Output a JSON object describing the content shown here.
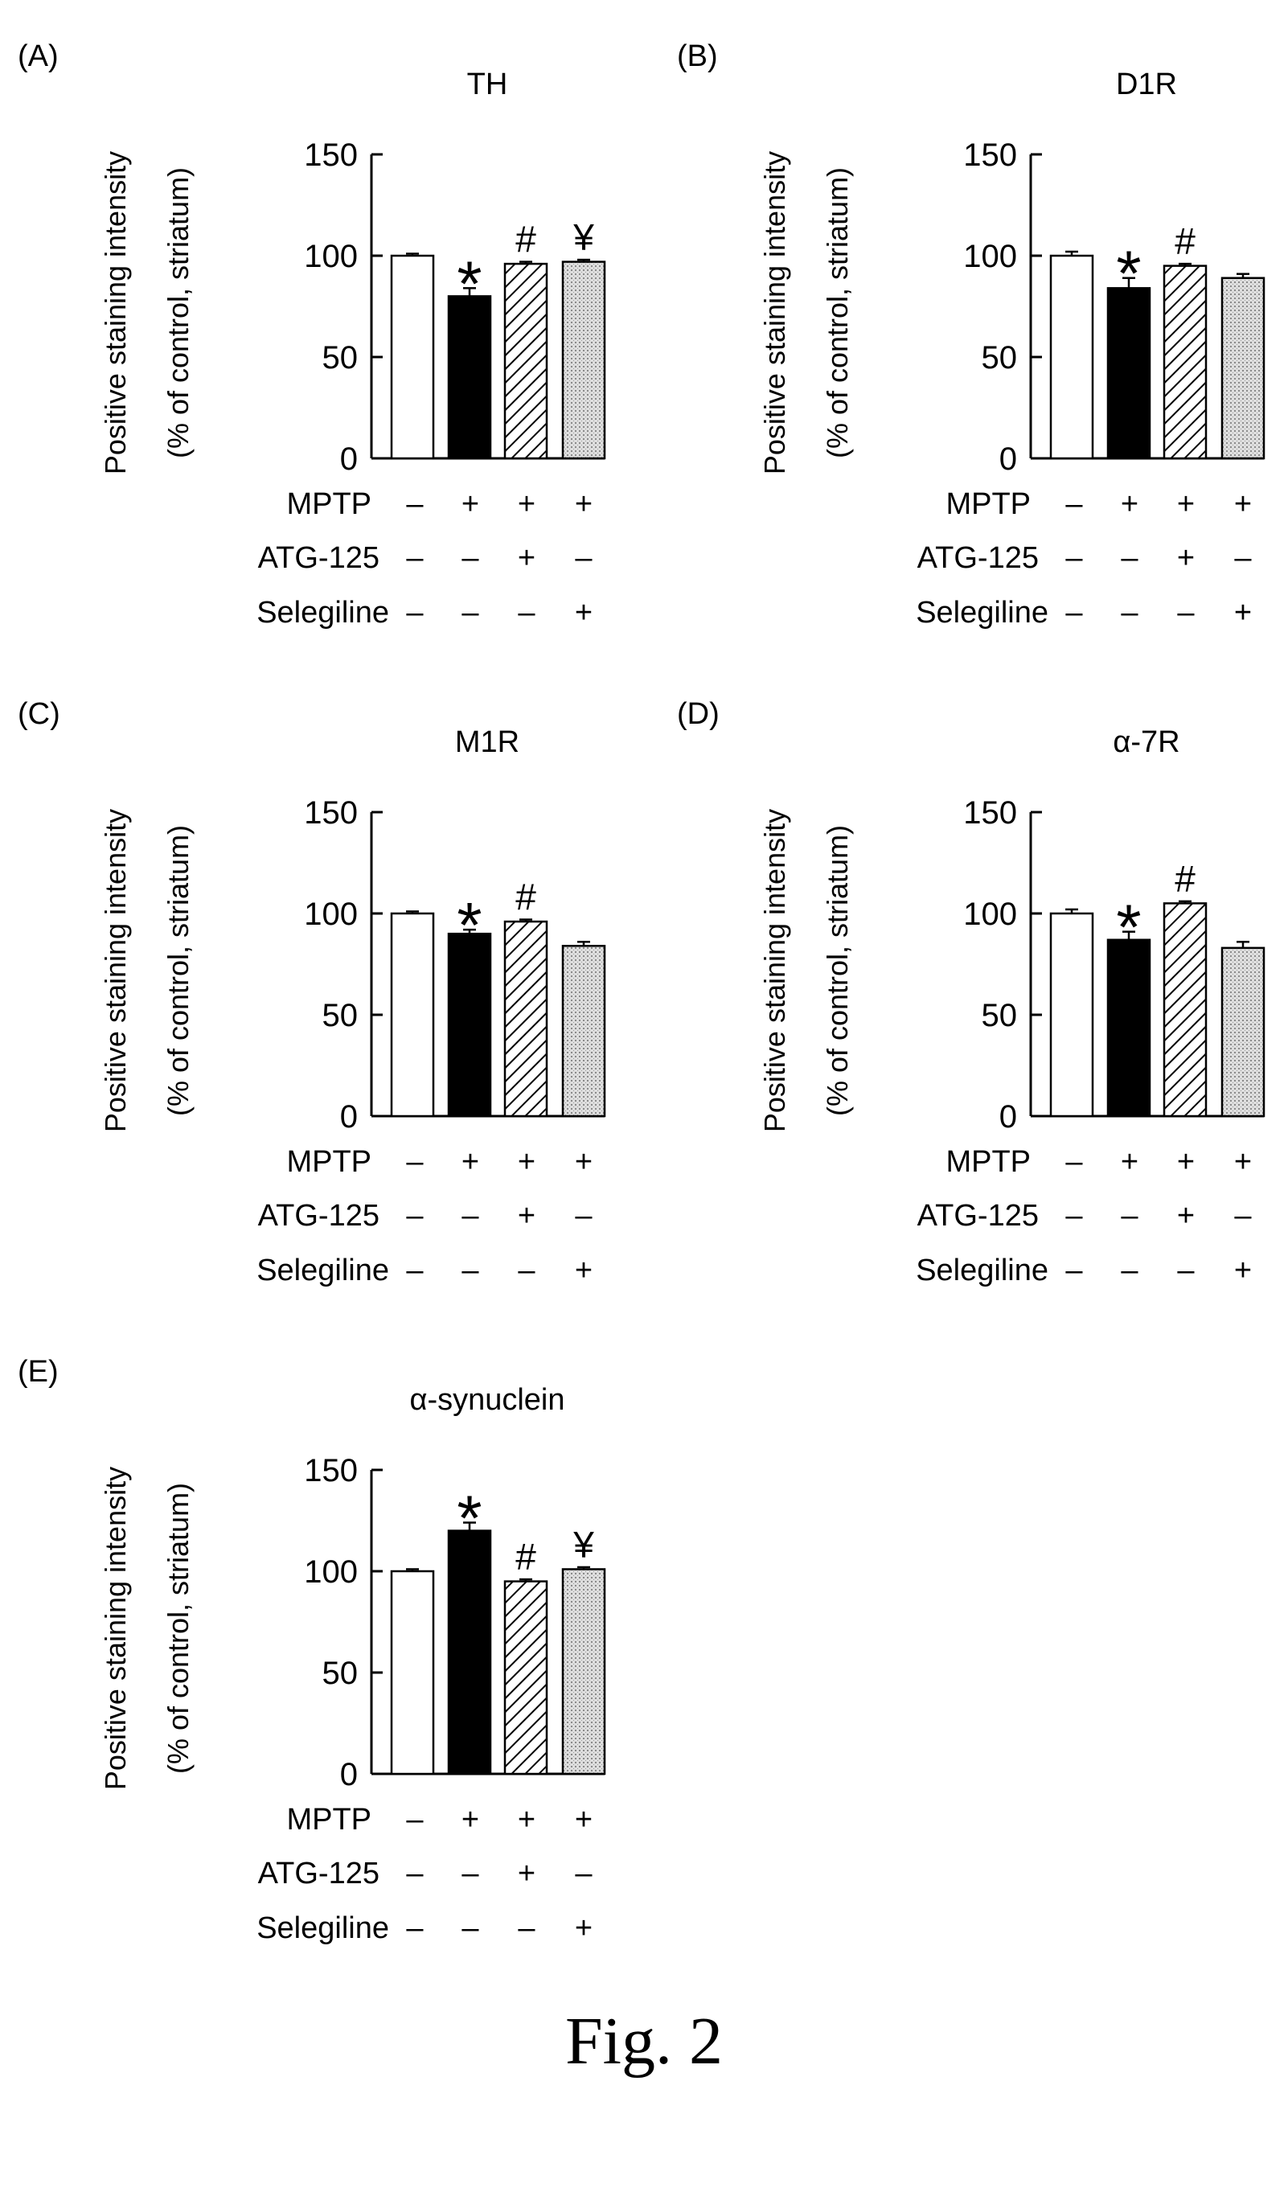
{
  "figure_caption": "Fig. 2",
  "colors": {
    "control": "#ffffff",
    "mptp": "#000000",
    "atg125": "hatched",
    "selegiline": "#d4d4d4"
  },
  "conditions": {
    "row_labels": [
      "MPTP",
      "ATG-125",
      "Selegiline"
    ],
    "signs": [
      [
        "–",
        "+",
        "+",
        "+"
      ],
      [
        "–",
        "–",
        "+",
        "–"
      ],
      [
        "–",
        "–",
        "–",
        "+"
      ]
    ]
  },
  "chart_data": [
    {
      "type": "bar",
      "panel": "(A)",
      "title": "TH",
      "ylabel": [
        "Positive staining intensity",
        "(% of control, striatum)"
      ],
      "ylim": [
        0,
        150
      ],
      "yticks": [
        0,
        50,
        100,
        150
      ],
      "values": [
        100,
        80,
        96,
        97
      ],
      "errors": [
        1,
        4,
        1,
        1
      ],
      "marks": [
        "",
        "*",
        "#",
        "¥"
      ]
    },
    {
      "type": "bar",
      "panel": "(B)",
      "title": "D1R",
      "ylabel": [
        "Positive staining intensity",
        "(% of control, striatum)"
      ],
      "ylim": [
        0,
        150
      ],
      "yticks": [
        0,
        50,
        100,
        150
      ],
      "values": [
        100,
        84,
        95,
        89
      ],
      "errors": [
        2,
        5,
        1,
        2
      ],
      "marks": [
        "",
        "*",
        "#",
        ""
      ]
    },
    {
      "type": "bar",
      "panel": "(C)",
      "title": "M1R",
      "ylabel": [
        "Positive staining intensity",
        "(% of control, striatum)"
      ],
      "ylim": [
        0,
        150
      ],
      "yticks": [
        0,
        50,
        100,
        150
      ],
      "values": [
        100,
        90,
        96,
        84
      ],
      "errors": [
        1,
        2,
        1,
        2
      ],
      "marks": [
        "",
        "*",
        "#",
        ""
      ]
    },
    {
      "type": "bar",
      "panel": "(D)",
      "title": "α-7R",
      "ylabel": [
        "Positive staining intensity",
        "(% of control, striatum)"
      ],
      "ylim": [
        0,
        150
      ],
      "yticks": [
        0,
        50,
        100,
        150
      ],
      "values": [
        100,
        87,
        105,
        83
      ],
      "errors": [
        2,
        4,
        1,
        3
      ],
      "marks": [
        "",
        "*",
        "#",
        ""
      ]
    },
    {
      "type": "bar",
      "panel": "(E)",
      "title": "α-synuclein",
      "ylabel": [
        "Positive staining intensity",
        "(% of control, striatum)"
      ],
      "ylim": [
        0,
        150
      ],
      "yticks": [
        0,
        50,
        100,
        150
      ],
      "values": [
        100,
        120,
        95,
        101
      ],
      "errors": [
        1,
        4,
        1,
        1
      ],
      "marks": [
        "",
        "*",
        "#",
        "¥"
      ]
    }
  ]
}
